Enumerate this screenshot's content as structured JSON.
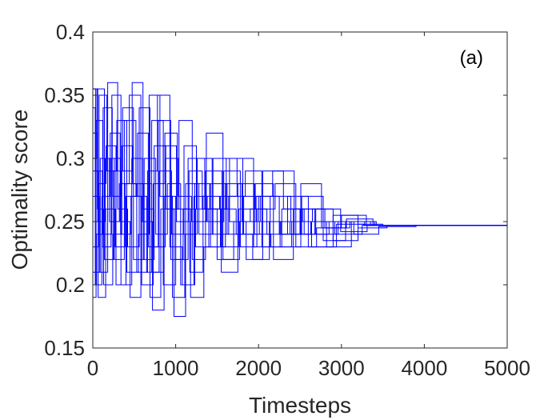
{
  "chart_data": {
    "type": "line",
    "title": "",
    "xlabel": "Timesteps",
    "ylabel": "Optimality score",
    "xlim": [
      0,
      5000
    ],
    "ylim": [
      0.15,
      0.4
    ],
    "xticks": [
      0,
      1000,
      2000,
      3000,
      4000,
      5000
    ],
    "xtick_labels": [
      "0",
      "1000",
      "2000",
      "3000",
      "4000",
      "5000"
    ],
    "yticks": [
      0.15,
      0.2,
      0.25,
      0.3,
      0.35,
      0.4
    ],
    "ytick_labels": [
      "0.15",
      "0.2",
      "0.25",
      "0.3",
      "0.35",
      "0.4"
    ],
    "annotation": "(a)",
    "grid": false,
    "series_color": "#0000ff",
    "description_of_series": "many overlapping step traces; wide spread 0.175-0.36 early, converging to ~0.247 after ~3300 timesteps",
    "convergence_value": 0.247,
    "series": [
      {
        "x": [
          0,
          60,
          150,
          260,
          380,
          520,
          650,
          800,
          950,
          1100,
          1250,
          1400,
          1600,
          1800,
          2000,
          2250,
          2500,
          2800,
          3100,
          3400,
          3800,
          4200,
          5000
        ],
        "y": [
          0.355,
          0.25,
          0.3,
          0.22,
          0.33,
          0.27,
          0.21,
          0.29,
          0.24,
          0.31,
          0.26,
          0.23,
          0.28,
          0.25,
          0.27,
          0.24,
          0.26,
          0.245,
          0.25,
          0.247,
          0.247,
          0.247,
          0.247
        ]
      },
      {
        "x": [
          0,
          40,
          120,
          230,
          340,
          470,
          600,
          720,
          860,
          1000,
          1150,
          1350,
          1550,
          1750,
          1950,
          2150,
          2400,
          2650,
          2900,
          3200,
          3500,
          4000,
          5000
        ],
        "y": [
          0.19,
          0.33,
          0.24,
          0.35,
          0.2,
          0.3,
          0.25,
          0.18,
          0.27,
          0.22,
          0.3,
          0.26,
          0.21,
          0.28,
          0.24,
          0.23,
          0.25,
          0.26,
          0.235,
          0.248,
          0.247,
          0.247,
          0.247
        ]
      },
      {
        "x": [
          0,
          80,
          180,
          300,
          420,
          560,
          690,
          820,
          980,
          1120,
          1280,
          1450,
          1650,
          1850,
          2050,
          2300,
          2550,
          2850,
          3150,
          3450,
          3900,
          4300,
          5000
        ],
        "y": [
          0.27,
          0.21,
          0.36,
          0.26,
          0.23,
          0.34,
          0.19,
          0.26,
          0.175,
          0.28,
          0.24,
          0.3,
          0.25,
          0.22,
          0.29,
          0.26,
          0.24,
          0.25,
          0.24,
          0.246,
          0.247,
          0.247,
          0.247
        ]
      },
      {
        "x": [
          0,
          50,
          140,
          250,
          360,
          490,
          620,
          760,
          900,
          1060,
          1220,
          1380,
          1580,
          1780,
          1980,
          2200,
          2450,
          2700,
          3000,
          3300,
          3700,
          4100,
          5000
        ],
        "y": [
          0.3,
          0.355,
          0.22,
          0.29,
          0.34,
          0.22,
          0.3,
          0.24,
          0.28,
          0.2,
          0.27,
          0.25,
          0.29,
          0.23,
          0.26,
          0.28,
          0.23,
          0.245,
          0.255,
          0.247,
          0.247,
          0.247,
          0.247
        ]
      },
      {
        "x": [
          0,
          70,
          160,
          280,
          400,
          540,
          670,
          790,
          940,
          1090,
          1240,
          1420,
          1620,
          1820,
          2020,
          2270,
          2520,
          2780,
          3050,
          3350,
          3750,
          4350,
          5000
        ],
        "y": [
          0.23,
          0.28,
          0.31,
          0.2,
          0.27,
          0.32,
          0.23,
          0.33,
          0.22,
          0.26,
          0.23,
          0.28,
          0.24,
          0.27,
          0.25,
          0.24,
          0.27,
          0.235,
          0.25,
          0.247,
          0.247,
          0.247,
          0.247
        ]
      },
      {
        "x": [
          0,
          30,
          110,
          210,
          330,
          450,
          580,
          710,
          850,
          1010,
          1170,
          1330,
          1530,
          1730,
          1930,
          2130,
          2380,
          2630,
          2920,
          3250,
          3600,
          4050,
          5000
        ],
        "y": [
          0.34,
          0.2,
          0.27,
          0.32,
          0.25,
          0.19,
          0.28,
          0.21,
          0.31,
          0.25,
          0.21,
          0.27,
          0.26,
          0.24,
          0.22,
          0.25,
          0.24,
          0.25,
          0.24,
          0.247,
          0.247,
          0.247,
          0.247
        ]
      },
      {
        "x": [
          0,
          90,
          200,
          320,
          440,
          580,
          710,
          850,
          1000,
          1160,
          1320,
          1500,
          1700,
          1900,
          2100,
          2350,
          2600,
          2900,
          3200,
          3550,
          3950,
          4450,
          5000
        ],
        "y": [
          0.21,
          0.3,
          0.25,
          0.28,
          0.35,
          0.25,
          0.33,
          0.2,
          0.25,
          0.29,
          0.26,
          0.22,
          0.25,
          0.26,
          0.24,
          0.27,
          0.23,
          0.255,
          0.245,
          0.247,
          0.247,
          0.247,
          0.247
        ]
      },
      {
        "x": [
          0,
          55,
          130,
          240,
          350,
          480,
          610,
          740,
          880,
          1040,
          1200,
          1360,
          1560,
          1760,
          1960,
          2180,
          2420,
          2680,
          2960,
          3280,
          3650,
          4150,
          5000
        ],
        "y": [
          0.32,
          0.26,
          0.2,
          0.24,
          0.31,
          0.28,
          0.22,
          0.31,
          0.26,
          0.33,
          0.22,
          0.29,
          0.23,
          0.26,
          0.28,
          0.22,
          0.26,
          0.24,
          0.25,
          0.247,
          0.247,
          0.247,
          0.247
        ]
      },
      {
        "x": [
          0,
          75,
          170,
          290,
          410,
          550,
          680,
          810,
          960,
          1110,
          1260,
          1440,
          1640,
          1840,
          2040,
          2280,
          2530,
          2820,
          3120,
          3420,
          3850,
          4250,
          5000
        ],
        "y": [
          0.25,
          0.35,
          0.29,
          0.33,
          0.21,
          0.24,
          0.35,
          0.27,
          0.19,
          0.24,
          0.3,
          0.24,
          0.27,
          0.29,
          0.23,
          0.26,
          0.25,
          0.23,
          0.25,
          0.247,
          0.247,
          0.247,
          0.247
        ]
      },
      {
        "x": [
          0,
          45,
          125,
          235,
          345,
          475,
          605,
          735,
          875,
          1030,
          1190,
          1370,
          1570,
          1770,
          1970,
          2170,
          2430,
          2690,
          2990,
          3310,
          3720,
          4180,
          5000
        ],
        "y": [
          0.2,
          0.24,
          0.34,
          0.27,
          0.29,
          0.36,
          0.26,
          0.23,
          0.3,
          0.27,
          0.25,
          0.32,
          0.22,
          0.25,
          0.27,
          0.29,
          0.24,
          0.26,
          0.242,
          0.247,
          0.247,
          0.247,
          0.247
        ]
      },
      {
        "x": [
          0,
          65,
          155,
          270,
          390,
          530,
          660,
          780,
          930,
          1080,
          1230,
          1410,
          1610,
          1810,
          2010,
          2260,
          2510,
          2760,
          3060,
          3380,
          3800,
          4400,
          5000
        ],
        "y": [
          0.29,
          0.19,
          0.26,
          0.23,
          0.28,
          0.21,
          0.29,
          0.35,
          0.23,
          0.2,
          0.28,
          0.26,
          0.3,
          0.24,
          0.25,
          0.23,
          0.28,
          0.245,
          0.252,
          0.247,
          0.247,
          0.247,
          0.247
        ]
      },
      {
        "x": [
          0,
          35,
          115,
          220,
          335,
          460,
          590,
          730,
          870,
          1020,
          1180,
          1340,
          1540,
          1740,
          1940,
          2140,
          2390,
          2640,
          2940,
          3270,
          3620,
          4080,
          5000
        ],
        "y": [
          0.355,
          0.29,
          0.23,
          0.3,
          0.24,
          0.27,
          0.2,
          0.28,
          0.32,
          0.26,
          0.19,
          0.23,
          0.27,
          0.3,
          0.23,
          0.27,
          0.25,
          0.23,
          0.248,
          0.247,
          0.247,
          0.247,
          0.247
        ]
      }
    ]
  }
}
